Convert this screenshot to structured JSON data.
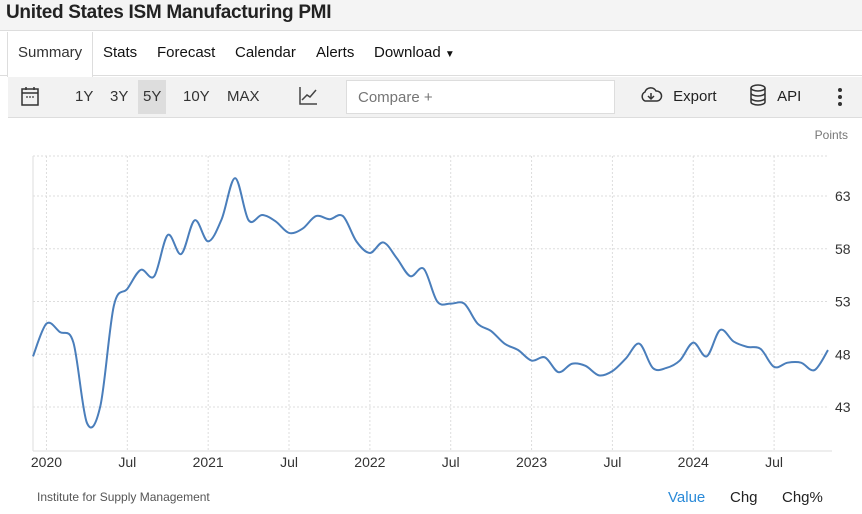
{
  "header": {
    "title": "United States ISM Manufacturing PMI"
  },
  "tabs": [
    {
      "label": "Summary"
    },
    {
      "label": "Stats"
    },
    {
      "label": "Forecast"
    },
    {
      "label": "Calendar"
    },
    {
      "label": "Alerts"
    },
    {
      "label": "Download"
    }
  ],
  "toolbar": {
    "ranges": [
      "1Y",
      "3Y",
      "5Y",
      "10Y",
      "MAX"
    ],
    "selected_range": "5Y",
    "compare_placeholder": "Compare +",
    "export_label": "Export",
    "api_label": "API"
  },
  "footer": {
    "source": "Institute for Supply Management",
    "buttons": [
      "Value",
      "Chg",
      "Chg%"
    ],
    "active_button": "Value"
  },
  "colors": {
    "line": "#4a7ebb",
    "active": "#2a8ad8"
  },
  "chart_data": {
    "type": "line",
    "unit_label": "Points",
    "y_ticks": [
      43,
      48,
      53,
      58,
      63
    ],
    "ylim": [
      39.5,
      66.5
    ],
    "x_ticks": [
      {
        "date": "2020-01",
        "label": "2020"
      },
      {
        "date": "2020-07",
        "label": "Jul"
      },
      {
        "date": "2021-01",
        "label": "2021"
      },
      {
        "date": "2021-07",
        "label": "Jul"
      },
      {
        "date": "2022-01",
        "label": "2022"
      },
      {
        "date": "2022-07",
        "label": "Jul"
      },
      {
        "date": "2023-01",
        "label": "2023"
      },
      {
        "date": "2023-07",
        "label": "Jul"
      },
      {
        "date": "2024-01",
        "label": "2024"
      },
      {
        "date": "2024-07",
        "label": "Jul"
      }
    ],
    "grid": true,
    "start": "2019-12",
    "series": [
      {
        "values": [
          47.8,
          50.9,
          50.1,
          49.1,
          41.5,
          43.1,
          52.6,
          54.2,
          56.0,
          55.4,
          59.3,
          57.5,
          60.7,
          58.7,
          60.8,
          64.7,
          60.7,
          61.2,
          60.6,
          59.5,
          59.9,
          61.1,
          60.8,
          61.1,
          58.7,
          57.6,
          58.6,
          57.1,
          55.4,
          56.1,
          53.0,
          52.8,
          52.8,
          50.9,
          50.2,
          49.0,
          48.4,
          47.4,
          47.7,
          46.3,
          47.1,
          46.9,
          46.0,
          46.4,
          47.6,
          49.0,
          46.7,
          46.7,
          47.4,
          49.1,
          47.8,
          50.3,
          49.2,
          48.7,
          48.5,
          46.8,
          47.2,
          47.2,
          46.5,
          48.4
        ]
      }
    ]
  }
}
